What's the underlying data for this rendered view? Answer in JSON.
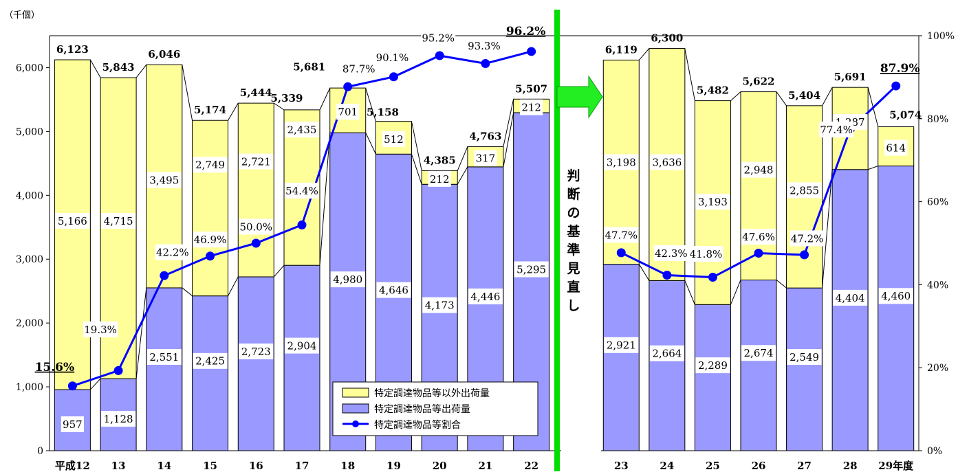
{
  "chart_data": {
    "type": "bar",
    "unit_label": "（千個）",
    "y_ticks": [
      "0",
      "1,000",
      "2,000",
      "3,000",
      "4,000",
      "5,000",
      "6,000"
    ],
    "y2_ticks": [
      "0%",
      "20%",
      "40%",
      "60%",
      "80%",
      "100%"
    ],
    "ylim": [
      0,
      6500
    ],
    "y2lim": [
      0,
      100
    ],
    "grid": false,
    "categories": [
      "平成12",
      "13",
      "14",
      "15",
      "16",
      "17",
      "18",
      "19",
      "20",
      "21",
      "22",
      "23",
      "24",
      "25",
      "26",
      "27",
      "28",
      "29年度"
    ],
    "series": [
      {
        "name": "特定調達物品等以外出荷量",
        "color": "#ffff99",
        "values": [
          5166,
          4715,
          3495,
          2749,
          2721,
          2435,
          701,
          512,
          212,
          317,
          212,
          3198,
          3636,
          3193,
          2948,
          2855,
          1287,
          614
        ],
        "labels": [
          "5,166",
          "4,715",
          "3,495",
          "2,749",
          "2,721",
          "2,435",
          "701",
          "512",
          "212",
          "317",
          "212",
          "3,198",
          "3,636",
          "3,193",
          "2,948",
          "2,855",
          "1,287",
          "614"
        ]
      },
      {
        "name": "特定調達物品等出荷量",
        "color": "#9999ff",
        "values": [
          957,
          1128,
          2551,
          2425,
          2723,
          2904,
          4980,
          4646,
          4173,
          4446,
          5295,
          2921,
          2664,
          2289,
          2674,
          2549,
          4404,
          4460
        ],
        "labels": [
          "957",
          "1,128",
          "2,551",
          "2,425",
          "2,723",
          "2,904",
          "4,980",
          "4,646",
          "4,173",
          "4,446",
          "5,295",
          "2,921",
          "2,664",
          "2,289",
          "2,674",
          "2,549",
          "4,404",
          "4,460"
        ]
      },
      {
        "name": "特定調達物品等割合",
        "color": "#0000ff",
        "axis": "right",
        "values": [
          15.6,
          19.3,
          42.2,
          46.9,
          50.0,
          54.4,
          87.7,
          90.1,
          95.2,
          93.3,
          96.2,
          47.7,
          42.3,
          41.8,
          47.6,
          47.2,
          77.4,
          87.9
        ],
        "labels": [
          "15.6%",
          "19.3%",
          "42.2%",
          "46.9%",
          "50.0%",
          "54.4%",
          "87.7%",
          "90.1%",
          "95.2%",
          "93.3%",
          "96.2%",
          "47.7%",
          "42.3%",
          "41.8%",
          "47.6%",
          "47.2%",
          "77.4%",
          "87.9%"
        ]
      }
    ],
    "totals": [
      6123,
      5843,
      6046,
      5174,
      5444,
      5339,
      5681,
      5158,
      4385,
      4763,
      5507,
      6119,
      6300,
      5482,
      5622,
      5404,
      5691,
      5074
    ],
    "total_labels": [
      "6,123",
      "5,843",
      "6,046",
      "5,174",
      "5,444",
      "5,339",
      "5,681",
      "5,158",
      "4,385",
      "4,763",
      "5,507",
      "6,119",
      "6,300",
      "5,482",
      "5,622",
      "5,404",
      "5,691",
      "5,074"
    ],
    "legend_position": "bottom-center",
    "divider_text": "判断の基準見直し",
    "divider_color": "#00dd00",
    "arrow_color": "#22ee22"
  }
}
